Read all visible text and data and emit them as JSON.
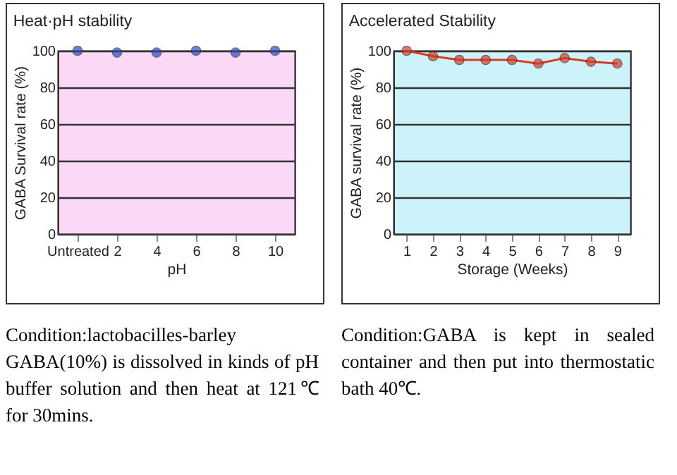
{
  "chart_data": [
    {
      "type": "scatter",
      "title": "Heat·pH stability",
      "xlabel": "pH",
      "ylabel": "GABA Survival rate (%)",
      "categories": [
        "Untreated",
        "2",
        "4",
        "6",
        "8",
        "10"
      ],
      "series": [
        {
          "color": "#2848c0",
          "values": [
            100,
            99,
            99,
            100,
            99,
            100
          ]
        }
      ],
      "ylim": [
        0,
        100
      ],
      "yticks": [
        0,
        20,
        40,
        60,
        80,
        100
      ],
      "grid": "y",
      "marker": "circle",
      "annotations": [
        "Condition:lactobacilles-barley GABA(10%) is dissolved in kinds of pH buffer solution and then heat at 121℃ for 30mins."
      ]
    },
    {
      "type": "line",
      "title": "Accelerated Stability",
      "xlabel": "Storage (Weeks)",
      "ylabel": "GABA survival rate (%)",
      "categories": [
        "1",
        "2",
        "3",
        "4",
        "5",
        "6",
        "7",
        "8",
        "9"
      ],
      "series": [
        {
          "color": "#d83a22",
          "values": [
            100,
            97,
            95,
            95,
            95,
            93,
            96,
            94,
            93
          ]
        }
      ],
      "ylim": [
        0,
        100
      ],
      "yticks": [
        0,
        20,
        40,
        60,
        80,
        100
      ],
      "grid": "y",
      "marker": "circle",
      "line_style": "solid",
      "annotations": [
        "Condition:GABA is kept in sealed container and then put into thermostatic bath 40℃."
      ]
    }
  ]
}
